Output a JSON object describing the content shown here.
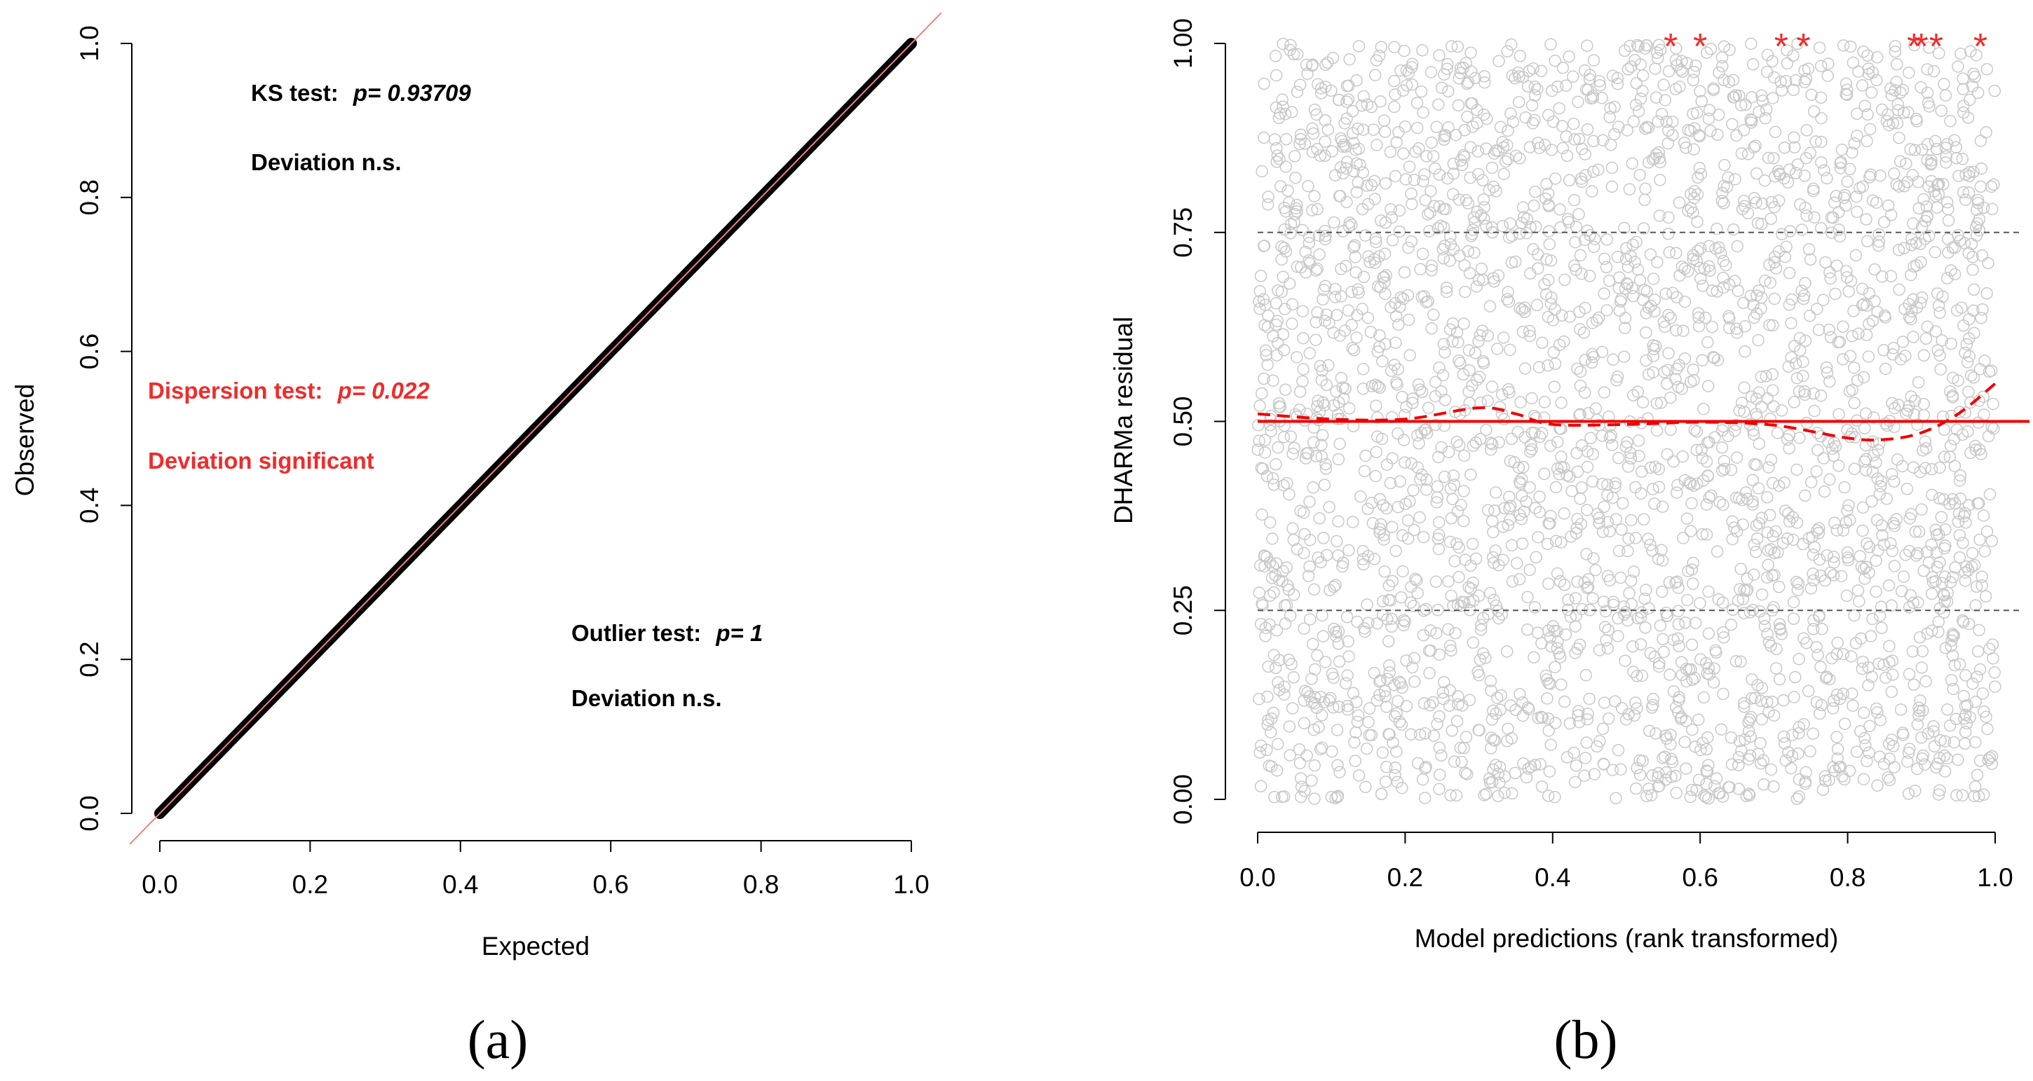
{
  "chart_data": [
    {
      "panel": "(a)",
      "type": "line",
      "xlabel": "Expected",
      "ylabel": "Observed",
      "xlim": [
        0,
        1
      ],
      "ylim": [
        0,
        1
      ],
      "x_ticks": [
        "0.0",
        "0.2",
        "0.4",
        "0.6",
        "0.8",
        "1.0"
      ],
      "y_ticks": [
        "0.0",
        "0.2",
        "0.4",
        "0.6",
        "0.8",
        "1.0"
      ],
      "series": [
        {
          "values_x": [
            0,
            0.1,
            0.2,
            0.3,
            0.4,
            0.5,
            0.6,
            0.7,
            0.8,
            0.9,
            1.0
          ],
          "values_y": [
            0,
            0.1,
            0.2,
            0.3,
            0.4,
            0.5,
            0.6,
            0.7,
            0.8,
            0.9,
            1.0
          ],
          "color": "#000000"
        }
      ],
      "reference_line": {
        "slope": 1,
        "intercept": 0,
        "color": "#f08080"
      },
      "annotations": {
        "ks_label": "KS test:",
        "ks_value": "p= 0.93709",
        "ks_deviation": "Deviation  n.s.",
        "disp_label": "Dispersion test:",
        "disp_value": "p= 0.022",
        "disp_deviation": "Deviation significant",
        "outlier_label": "Outlier test:",
        "outlier_value": "p= 1",
        "outlier_deviation": "Deviation  n.s."
      },
      "colors": {
        "normal": "#000000",
        "significant": "#ee2c2c"
      }
    },
    {
      "panel": "(b)",
      "type": "scatter",
      "xlabel": "Model predictions (rank transformed)",
      "ylabel": "DHARMa residual",
      "xlim": [
        0,
        1
      ],
      "ylim": [
        0,
        1
      ],
      "x_ticks": [
        "0.0",
        "0.2",
        "0.4",
        "0.6",
        "0.8",
        "1.0"
      ],
      "y_ticks": [
        "0.00",
        "0.25",
        "0.50",
        "0.75",
        "1.00"
      ],
      "points": {
        "distribution": "uniform",
        "approx_count": 3000,
        "color": "#c8c8c8"
      },
      "outliers_x": [
        0.56,
        0.6,
        0.71,
        0.74,
        0.89,
        0.9,
        0.92,
        0.98
      ],
      "outlier_y": 1.0,
      "quantile_reference": [
        0.25,
        0.5,
        0.75
      ],
      "fitted_quantile": {
        "x": [
          0,
          0.1,
          0.2,
          0.3,
          0.35,
          0.4,
          0.5,
          0.6,
          0.7,
          0.8,
          0.85,
          0.9,
          0.95,
          1.0
        ],
        "y": [
          0.51,
          0.503,
          0.503,
          0.518,
          0.51,
          0.496,
          0.496,
          0.499,
          0.495,
          0.478,
          0.476,
          0.485,
          0.51,
          0.55
        ]
      },
      "colors": {
        "points": "#c8c8c8",
        "outliers": "#ee2c2c",
        "quantile": "#ee0000",
        "reference": "#555555"
      }
    }
  ],
  "panel_labels": {
    "a": "(a)",
    "b": "(b)"
  }
}
